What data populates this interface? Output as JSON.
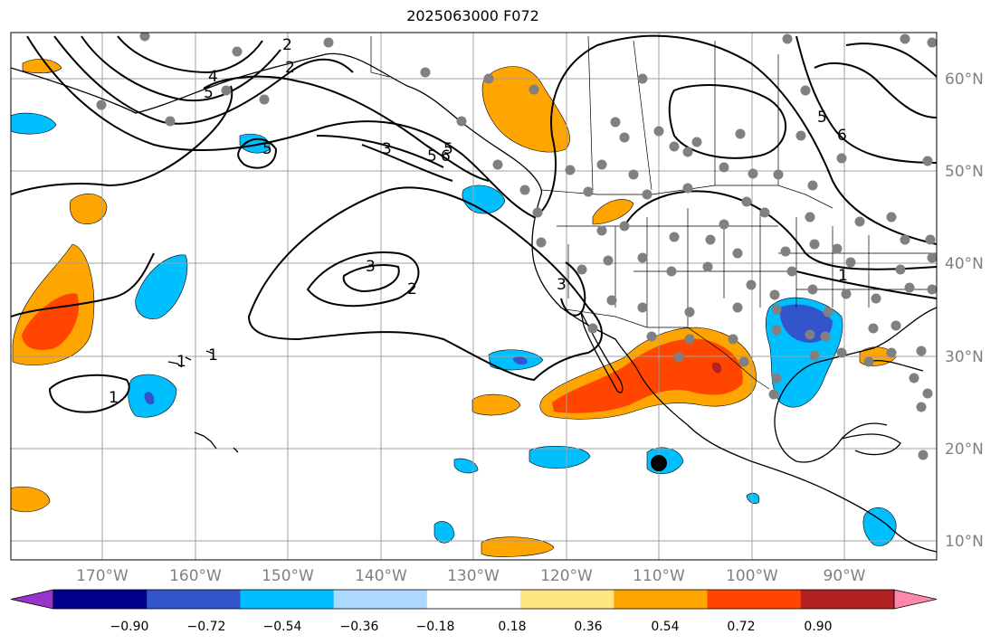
{
  "title": "2025063000 F072",
  "lon_labels": [
    "170°W",
    "160°W",
    "150°W",
    "140°W",
    "130°W",
    "120°W",
    "110°W",
    "100°W",
    "90°W"
  ],
  "lat_labels": [
    "60°N",
    "50°N",
    "40°N",
    "30°N",
    "20°N",
    "10°N"
  ],
  "colorbar": {
    "colors": [
      "#9933cc",
      "#00008b",
      "#3355cc",
      "#00bfff",
      "#add8ff",
      "#ffffff",
      "#ffe680",
      "#ffa500",
      "#ff4500",
      "#b22222",
      "#ff88aa"
    ],
    "tick_labels": [
      "−0.90",
      "−0.72",
      "−0.54",
      "−0.36",
      "−0.18",
      "0.18",
      "0.36",
      "0.54",
      "0.72",
      "0.90"
    ]
  },
  "contour_labels": [
    "2",
    "2",
    "3",
    "4",
    "5",
    "5",
    "5",
    "6",
    "3",
    "2",
    "3",
    "1",
    "1",
    "1",
    "5",
    "5",
    "6",
    "1"
  ],
  "colors": {
    "grid": "#a0a0a0",
    "coast": "#000000",
    "station": "#808080",
    "axis_text": "#808080"
  }
}
